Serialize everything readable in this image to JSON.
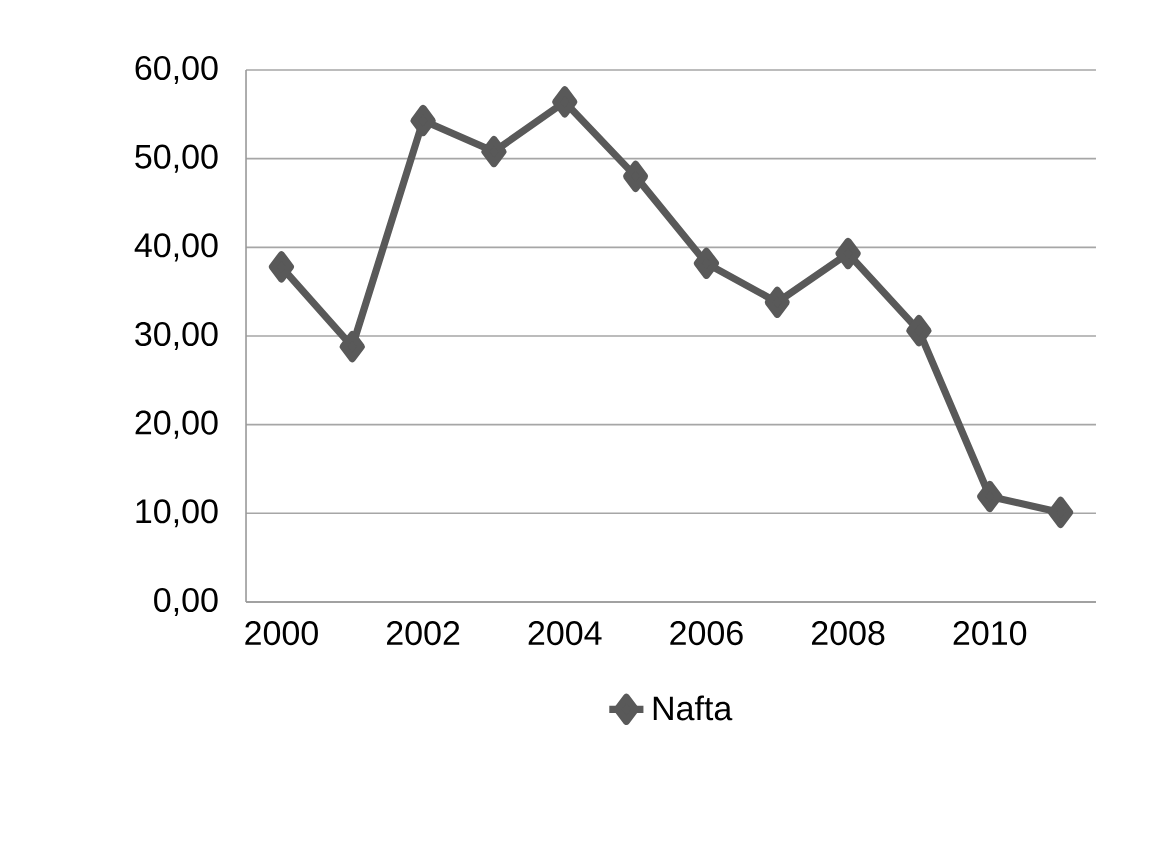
{
  "chart_data": {
    "type": "line",
    "categories": [
      "2000",
      null,
      "2002",
      null,
      "2004",
      null,
      "2006",
      null,
      "2008",
      null,
      "2010",
      null
    ],
    "series": [
      {
        "name": "Nafta",
        "color": "#595959",
        "values": [
          37.8,
          28.8,
          54.3,
          50.8,
          56.4,
          48.0,
          38.2,
          33.8,
          39.3,
          30.6,
          11.9,
          10.1
        ]
      }
    ],
    "ylim": [
      0,
      60
    ],
    "yticks": [
      {
        "value": 0,
        "label": "0,00"
      },
      {
        "value": 10,
        "label": "10,00"
      },
      {
        "value": 20,
        "label": "20,00"
      },
      {
        "value": 30,
        "label": "30,00"
      },
      {
        "value": 40,
        "label": "40,00"
      },
      {
        "value": 50,
        "label": "50,00"
      },
      {
        "value": 60,
        "label": "60,00"
      }
    ],
    "grid": "y",
    "legend": "bottom",
    "marker": "diamond",
    "line_style": "solid"
  }
}
